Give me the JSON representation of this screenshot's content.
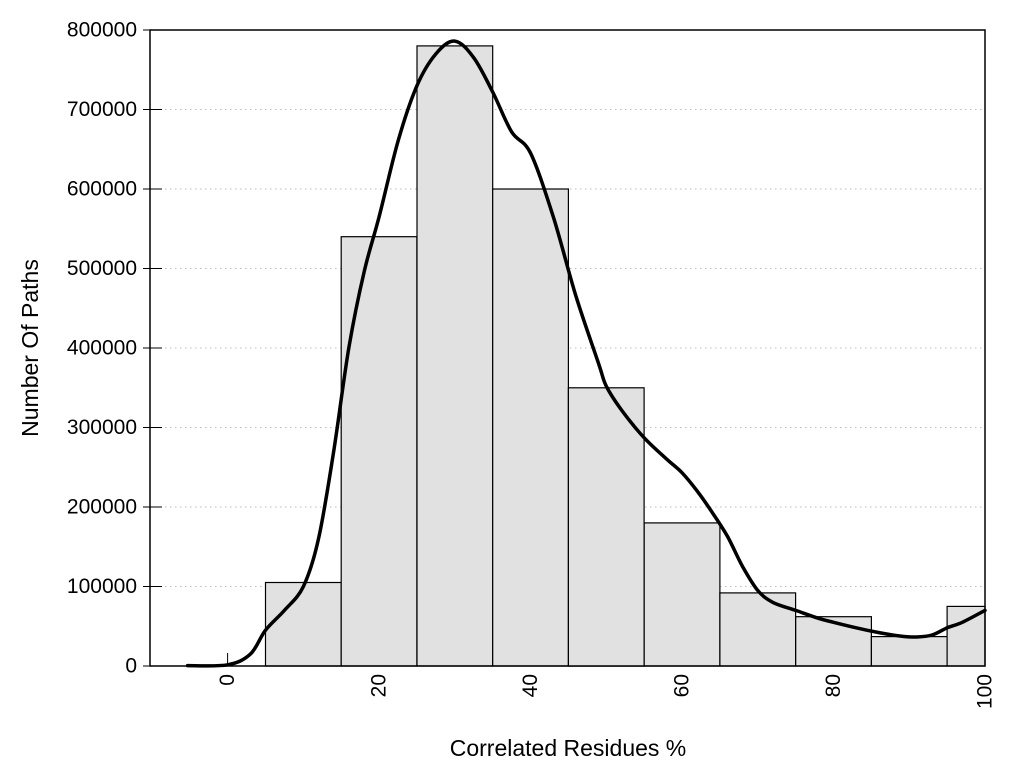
{
  "figure": {
    "background": "#ffffff"
  },
  "chart_data": {
    "type": "bar-line-histogram",
    "title": "",
    "xlabel": "Correlated Residues %",
    "ylabel": "Number Of Paths",
    "xlim": [
      -10.25,
      100
    ],
    "ylim": [
      0,
      800000
    ],
    "x_ticks": [
      0,
      20,
      40,
      60,
      80,
      100
    ],
    "x_tick_labels": [
      "0",
      "20",
      "40",
      "60",
      "80",
      "100"
    ],
    "y_ticks": [
      0,
      100000,
      200000,
      300000,
      400000,
      500000,
      600000,
      700000,
      800000
    ],
    "y_tick_labels": [
      "0",
      "100000",
      "200000",
      "300000",
      "400000",
      "500000",
      "600000",
      "700000",
      "800000"
    ],
    "grid": "horizontal-dotted",
    "legend": "none",
    "bars": {
      "bin_edges": [
        5,
        15,
        25,
        35,
        45,
        55,
        65,
        75,
        85,
        95,
        100
      ],
      "bin_centers": [
        10,
        20,
        30,
        40,
        50,
        60,
        70,
        80,
        90,
        100
      ],
      "values": [
        105000,
        540000,
        780000,
        600000,
        350000,
        180000,
        92000,
        62000,
        37000,
        75000
      ]
    },
    "curve": {
      "name": "smoothed-density-curve",
      "points": [
        [
          -5.3,
          500
        ],
        [
          0,
          1500
        ],
        [
          3,
          15000
        ],
        [
          5,
          45000
        ],
        [
          7.5,
          70000
        ],
        [
          10,
          100000
        ],
        [
          12,
          160000
        ],
        [
          14,
          270000
        ],
        [
          16,
          400000
        ],
        [
          18,
          495000
        ],
        [
          20,
          565000
        ],
        [
          22.5,
          660000
        ],
        [
          25,
          730000
        ],
        [
          27.5,
          770000
        ],
        [
          30,
          786000
        ],
        [
          32.5,
          765000
        ],
        [
          35,
          722000
        ],
        [
          37.5,
          672000
        ],
        [
          40,
          645000
        ],
        [
          43,
          565000
        ],
        [
          46,
          465000
        ],
        [
          49,
          380000
        ],
        [
          50,
          352000
        ],
        [
          52,
          322000
        ],
        [
          55,
          287000
        ],
        [
          58,
          260000
        ],
        [
          60,
          243000
        ],
        [
          62,
          220000
        ],
        [
          64,
          193000
        ],
        [
          66,
          163000
        ],
        [
          68,
          125000
        ],
        [
          70,
          95000
        ],
        [
          72,
          80000
        ],
        [
          75,
          70000
        ],
        [
          78,
          60000
        ],
        [
          80,
          55000
        ],
        [
          83,
          48000
        ],
        [
          86,
          42000
        ],
        [
          89,
          37500
        ],
        [
          91,
          36500
        ],
        [
          93,
          39000
        ],
        [
          95,
          48000
        ],
        [
          97,
          55000
        ],
        [
          100,
          70000
        ]
      ]
    },
    "colors": {
      "bar_fill": "#e1e1e1",
      "bar_border": "#000000",
      "curve": "#000000",
      "grid": "#bdbdbd",
      "axis": "#000000",
      "text": "#000000"
    }
  }
}
